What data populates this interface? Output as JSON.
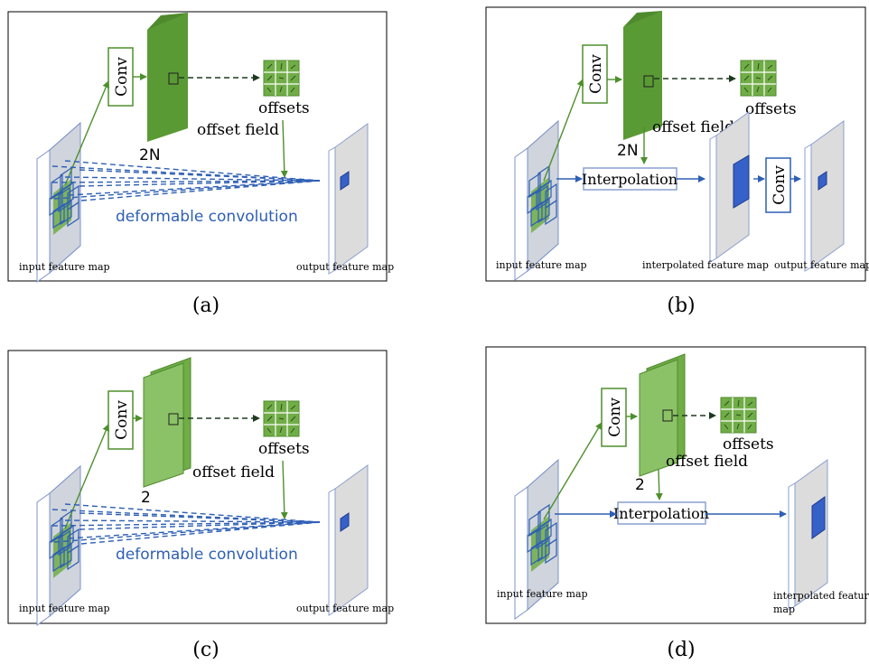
{
  "colors": {
    "green_dark": "#4f8a2e",
    "green_mid": "#70ad47",
    "green_light": "#8cc267",
    "arrow_green": "#4e8f2d",
    "blue": "#2e5fb5",
    "blue_fill": "#3561c9",
    "map_face": "#d8d8d8",
    "map_edge": "#aab8d8"
  },
  "panels": {
    "a": {
      "caption": "(a)",
      "conv": "Conv",
      "channels": "2N",
      "offset_field": "offset field",
      "offsets": "offsets",
      "deformable": "deformable convolution",
      "input": "input feature map",
      "output": "output feature map"
    },
    "b": {
      "caption": "(b)",
      "conv": "Conv",
      "channels": "2N",
      "offset_field": "offset field",
      "offsets": "offsets",
      "interpolation": "Interpolation",
      "conv2": "Conv",
      "input": "input feature map",
      "interpolated": "interpolated feature map",
      "output": "output feature map"
    },
    "c": {
      "caption": "(c)",
      "conv": "Conv",
      "channels": "2",
      "offset_field": "offset field",
      "offsets": "offsets",
      "deformable": "deformable convolution",
      "input": "input feature map",
      "output": "output feature map"
    },
    "d": {
      "caption": "(d)",
      "conv": "Conv",
      "channels": "2",
      "offset_field": "offset field",
      "offsets": "offsets",
      "interpolation": "Interpolation",
      "input": "input feature map",
      "interpolated_line1": "interpolated feature",
      "interpolated_line2": "map"
    }
  }
}
